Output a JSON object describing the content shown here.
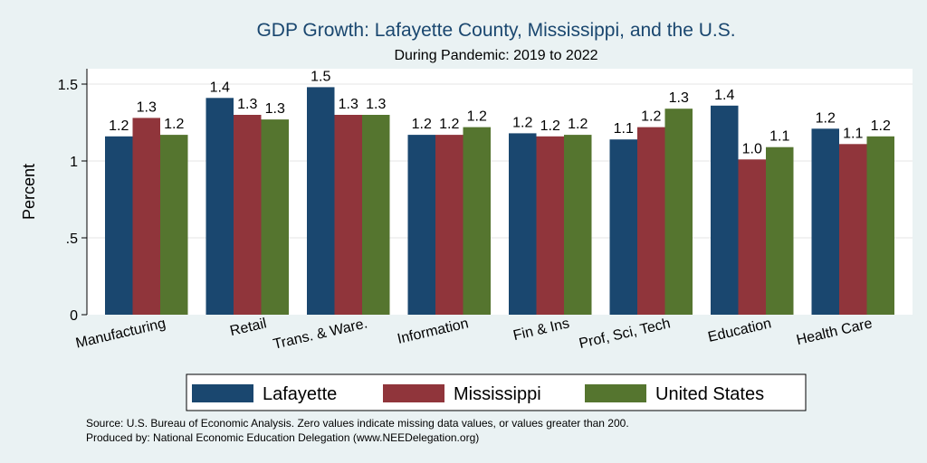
{
  "chart_data": {
    "type": "bar",
    "title": "GDP Growth: Lafayette County, Mississippi, and the U.S.",
    "subtitle": "During Pandemic: 2019 to 2022",
    "ylabel": "Percent",
    "xlabel": "",
    "ylim": [
      0,
      1.6
    ],
    "yticks": [
      {
        "value": 0,
        "label": "0"
      },
      {
        "value": 0.5,
        "label": ".5"
      },
      {
        "value": 1,
        "label": "1"
      },
      {
        "value": 1.5,
        "label": "1.5"
      }
    ],
    "grid": true,
    "legend_position": "bottom",
    "categories": [
      "Manufacturing",
      "Retail",
      "Trans. & Ware.",
      "Information",
      "Fin & Ins",
      "Prof, Sci, Tech",
      "Education",
      "Health Care"
    ],
    "series": [
      {
        "name": "Lafayette",
        "color": "#1a476f",
        "values": [
          1.16,
          1.41,
          1.48,
          1.17,
          1.18,
          1.14,
          1.36,
          1.21
        ],
        "labels": [
          "1.2",
          "1.4",
          "1.5",
          "1.2",
          "1.2",
          "1.1",
          "1.4",
          "1.2"
        ]
      },
      {
        "name": "Mississippi",
        "color": "#90353b",
        "values": [
          1.28,
          1.3,
          1.3,
          1.17,
          1.16,
          1.22,
          1.01,
          1.11
        ],
        "labels": [
          "1.3",
          "1.3",
          "1.3",
          "1.2",
          "1.2",
          "1.2",
          "1.0",
          "1.1"
        ]
      },
      {
        "name": "United States",
        "color": "#55752f",
        "values": [
          1.17,
          1.27,
          1.3,
          1.22,
          1.17,
          1.34,
          1.09,
          1.16
        ],
        "labels": [
          "1.2",
          "1.3",
          "1.3",
          "1.2",
          "1.2",
          "1.3",
          "1.1",
          "1.2"
        ]
      }
    ]
  },
  "footer": {
    "source": "Source: U.S. Bureau of Economic Analysis. Zero values indicate missing data values, or values greater than 200.",
    "produced_by": "Produced by: National Economic Education Delegation (www.NEEDelegation.org)"
  }
}
